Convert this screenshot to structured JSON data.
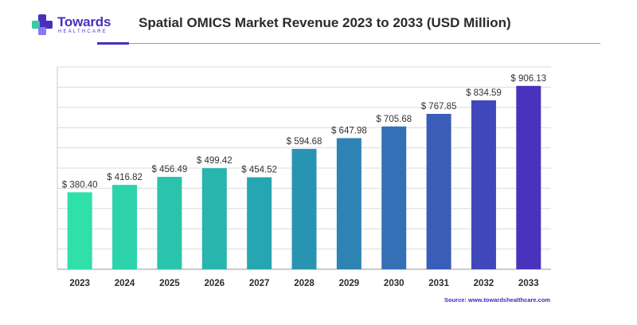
{
  "brand": {
    "name": "Towards",
    "subtitle": "HEALTHCARE",
    "colors": {
      "primary": "#4a2fbf",
      "accent": "#39c9a8"
    }
  },
  "chart_data": {
    "type": "bar",
    "title": "Spatial OMICS Market Revenue 2023 to 2033 (USD Million)",
    "xlabel": "",
    "ylabel": "",
    "categories": [
      "2023",
      "2024",
      "2025",
      "2026",
      "2027",
      "2028",
      "2029",
      "2030",
      "2031",
      "2032",
      "2033"
    ],
    "values": [
      380.4,
      416.82,
      456.49,
      499.42,
      454.52,
      594.68,
      647.98,
      705.68,
      767.85,
      834.59,
      906.13
    ],
    "data_labels": [
      "$ 380.40",
      "$ 416.82",
      "$ 456.49",
      "$ 499.42",
      "$ 454.52",
      "$ 594.68",
      "$ 647.98",
      "$ 705.68",
      "$ 767.85",
      "$ 834.59",
      "$ 906.13"
    ],
    "bar_colors": [
      "#2fe0a8",
      "#2dd3ab",
      "#2ac4ad",
      "#27b5ae",
      "#25a6b0",
      "#2994b2",
      "#2f82b4",
      "#3470b6",
      "#3a5db8",
      "#4047ba",
      "#4a33bc"
    ],
    "ylim": [
      0,
      1000
    ],
    "grid": true,
    "legend": "none"
  },
  "source": "Source: www.towardshealthcare.com"
}
